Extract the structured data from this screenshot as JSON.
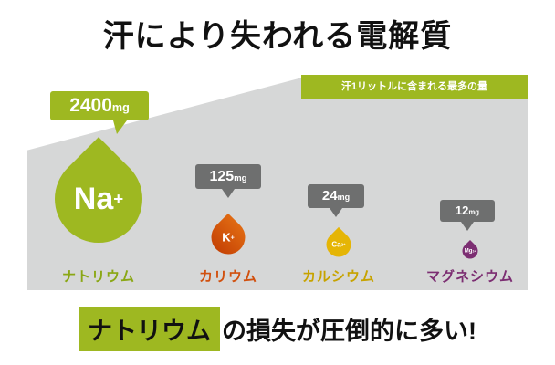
{
  "title": "汗により失われる電解質",
  "banner": "汗1リットルに含まれる最多の量",
  "items": [
    {
      "amount": "2400",
      "unit": "mg",
      "symbol": "Na",
      "charge": "+",
      "label": "ナトリウム"
    },
    {
      "amount": "125",
      "unit": "mg",
      "symbol": "K",
      "charge": "+",
      "label": "カリウム"
    },
    {
      "amount": "24",
      "unit": "mg",
      "symbol": "Ca",
      "charge": "2+",
      "label": "カルシウム"
    },
    {
      "amount": "12",
      "unit": "mg",
      "symbol": "Mg",
      "charge": "2+",
      "label": "マグネシウム"
    }
  ],
  "footer": {
    "highlight": "ナトリウム",
    "text": "の損失が圧倒的に多い!"
  },
  "chart_data": {
    "type": "bar",
    "title": "汗により失われる電解質",
    "subtitle": "汗1リットルに含まれる最多の量",
    "categories": [
      "ナトリウム",
      "カリウム",
      "カルシウム",
      "マグネシウム"
    ],
    "values": [
      2400,
      125,
      24,
      12
    ],
    "unit": "mg",
    "ion_symbols": [
      "Na+",
      "K+",
      "Ca2+",
      "Mg2+"
    ],
    "colors": [
      "#9eb821",
      "#d1500e",
      "#e5b506",
      "#7c2e72"
    ],
    "annotation": "ナトリウムの損失が圧倒的に多い!",
    "legend": "none",
    "grid": false
  }
}
